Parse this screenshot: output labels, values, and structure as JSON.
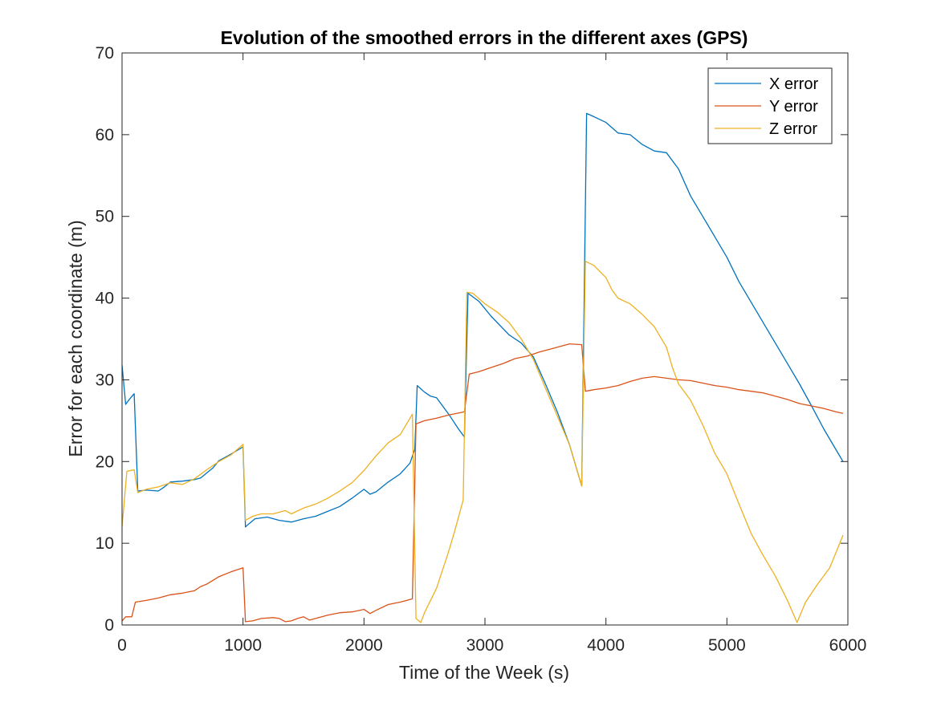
{
  "chart_data": {
    "type": "line",
    "title": "Evolution of the smoothed errors in the different axes (GPS)",
    "xlabel": "Time of the Week (s)",
    "ylabel": "Error for each coordinate (m)",
    "xlim": [
      0,
      6000
    ],
    "ylim": [
      0,
      70
    ],
    "xticks": [
      0,
      1000,
      2000,
      3000,
      4000,
      5000,
      6000
    ],
    "yticks": [
      0,
      10,
      20,
      30,
      40,
      50,
      60,
      70
    ],
    "grid": false,
    "legend_position": "top-right",
    "series": [
      {
        "name": "X error",
        "color": "#0072BD",
        "points": [
          [
            0,
            31.8
          ],
          [
            30,
            27.0
          ],
          [
            60,
            27.6
          ],
          [
            100,
            28.3
          ],
          [
            130,
            16.4
          ],
          [
            200,
            16.5
          ],
          [
            300,
            16.4
          ],
          [
            350,
            16.9
          ],
          [
            400,
            17.5
          ],
          [
            500,
            17.6
          ],
          [
            600,
            17.8
          ],
          [
            650,
            18.0
          ],
          [
            700,
            18.6
          ],
          [
            750,
            19.2
          ],
          [
            800,
            20.1
          ],
          [
            900,
            20.9
          ],
          [
            1000,
            21.8
          ],
          [
            1020,
            12.0
          ],
          [
            1050,
            12.4
          ],
          [
            1100,
            13.0
          ],
          [
            1200,
            13.2
          ],
          [
            1300,
            12.8
          ],
          [
            1400,
            12.6
          ],
          [
            1500,
            13.0
          ],
          [
            1600,
            13.3
          ],
          [
            1700,
            13.9
          ],
          [
            1800,
            14.5
          ],
          [
            1900,
            15.5
          ],
          [
            2000,
            16.6
          ],
          [
            2050,
            16.0
          ],
          [
            2100,
            16.3
          ],
          [
            2200,
            17.5
          ],
          [
            2300,
            18.5
          ],
          [
            2380,
            19.8
          ],
          [
            2420,
            21.5
          ],
          [
            2440,
            29.3
          ],
          [
            2500,
            28.5
          ],
          [
            2550,
            28.0
          ],
          [
            2600,
            27.8
          ],
          [
            2700,
            25.8
          ],
          [
            2780,
            24.0
          ],
          [
            2830,
            23.0
          ],
          [
            2860,
            40.6
          ],
          [
            2950,
            39.6
          ],
          [
            3050,
            37.8
          ],
          [
            3200,
            35.5
          ],
          [
            3300,
            34.5
          ],
          [
            3400,
            32.8
          ],
          [
            3500,
            29.5
          ],
          [
            3600,
            26.0
          ],
          [
            3700,
            22.0
          ],
          [
            3800,
            17.0
          ],
          [
            3840,
            62.6
          ],
          [
            3900,
            62.2
          ],
          [
            4000,
            61.5
          ],
          [
            4100,
            60.2
          ],
          [
            4200,
            60.0
          ],
          [
            4300,
            58.8
          ],
          [
            4400,
            58.0
          ],
          [
            4500,
            57.8
          ],
          [
            4600,
            55.8
          ],
          [
            4700,
            52.5
          ],
          [
            4800,
            50.0
          ],
          [
            4900,
            47.5
          ],
          [
            5000,
            45.0
          ],
          [
            5100,
            42.0
          ],
          [
            5200,
            39.5
          ],
          [
            5300,
            37.0
          ],
          [
            5400,
            34.5
          ],
          [
            5500,
            32.0
          ],
          [
            5600,
            29.5
          ],
          [
            5700,
            26.8
          ],
          [
            5800,
            24.0
          ],
          [
            5900,
            21.5
          ],
          [
            5960,
            20.0
          ]
        ]
      },
      {
        "name": "Y error",
        "color": "#D95319",
        "points": [
          [
            0,
            0.5
          ],
          [
            30,
            1.0
          ],
          [
            80,
            1.0
          ],
          [
            110,
            2.8
          ],
          [
            200,
            3.0
          ],
          [
            300,
            3.3
          ],
          [
            400,
            3.7
          ],
          [
            500,
            3.9
          ],
          [
            600,
            4.2
          ],
          [
            650,
            4.7
          ],
          [
            700,
            5.0
          ],
          [
            800,
            5.9
          ],
          [
            900,
            6.5
          ],
          [
            1000,
            7.0
          ],
          [
            1020,
            0.4
          ],
          [
            1080,
            0.5
          ],
          [
            1150,
            0.8
          ],
          [
            1250,
            0.9
          ],
          [
            1300,
            0.8
          ],
          [
            1350,
            0.4
          ],
          [
            1400,
            0.5
          ],
          [
            1450,
            0.8
          ],
          [
            1500,
            1.0
          ],
          [
            1550,
            0.6
          ],
          [
            1600,
            0.8
          ],
          [
            1700,
            1.2
          ],
          [
            1800,
            1.5
          ],
          [
            1900,
            1.6
          ],
          [
            2000,
            1.9
          ],
          [
            2050,
            1.4
          ],
          [
            2100,
            1.8
          ],
          [
            2200,
            2.5
          ],
          [
            2300,
            2.8
          ],
          [
            2400,
            3.2
          ],
          [
            2430,
            24.6
          ],
          [
            2500,
            25.0
          ],
          [
            2600,
            25.3
          ],
          [
            2700,
            25.7
          ],
          [
            2800,
            26.0
          ],
          [
            2830,
            26.1
          ],
          [
            2870,
            30.7
          ],
          [
            2950,
            31.0
          ],
          [
            3050,
            31.5
          ],
          [
            3150,
            32.0
          ],
          [
            3250,
            32.6
          ],
          [
            3350,
            32.9
          ],
          [
            3450,
            33.4
          ],
          [
            3550,
            33.8
          ],
          [
            3650,
            34.2
          ],
          [
            3700,
            34.4
          ],
          [
            3800,
            34.3
          ],
          [
            3830,
            28.6
          ],
          [
            3900,
            28.8
          ],
          [
            4000,
            29.0
          ],
          [
            4100,
            29.3
          ],
          [
            4200,
            29.8
          ],
          [
            4300,
            30.2
          ],
          [
            4400,
            30.4
          ],
          [
            4500,
            30.2
          ],
          [
            4600,
            30.0
          ],
          [
            4700,
            29.9
          ],
          [
            4800,
            29.6
          ],
          [
            4900,
            29.3
          ],
          [
            5000,
            29.1
          ],
          [
            5100,
            28.8
          ],
          [
            5200,
            28.6
          ],
          [
            5300,
            28.4
          ],
          [
            5400,
            28.0
          ],
          [
            5500,
            27.6
          ],
          [
            5600,
            27.1
          ],
          [
            5700,
            26.8
          ],
          [
            5800,
            26.5
          ],
          [
            5900,
            26.1
          ],
          [
            5960,
            25.9
          ]
        ]
      },
      {
        "name": "Z error",
        "color": "#EDB120",
        "points": [
          [
            0,
            12.0
          ],
          [
            40,
            18.8
          ],
          [
            100,
            19.0
          ],
          [
            130,
            16.2
          ],
          [
            200,
            16.6
          ],
          [
            300,
            16.9
          ],
          [
            400,
            17.4
          ],
          [
            500,
            17.2
          ],
          [
            600,
            17.9
          ],
          [
            700,
            19.0
          ],
          [
            800,
            20.0
          ],
          [
            900,
            20.8
          ],
          [
            1000,
            22.1
          ],
          [
            1020,
            12.8
          ],
          [
            1080,
            13.3
          ],
          [
            1150,
            13.6
          ],
          [
            1250,
            13.6
          ],
          [
            1350,
            14.0
          ],
          [
            1400,
            13.6
          ],
          [
            1500,
            14.3
          ],
          [
            1600,
            14.8
          ],
          [
            1700,
            15.5
          ],
          [
            1800,
            16.4
          ],
          [
            1900,
            17.4
          ],
          [
            2000,
            18.9
          ],
          [
            2100,
            20.7
          ],
          [
            2200,
            22.3
          ],
          [
            2300,
            23.3
          ],
          [
            2400,
            25.8
          ],
          [
            2430,
            0.8
          ],
          [
            2470,
            0.3
          ],
          [
            2500,
            1.5
          ],
          [
            2600,
            4.5
          ],
          [
            2700,
            9.0
          ],
          [
            2750,
            11.5
          ],
          [
            2820,
            15.3
          ],
          [
            2850,
            40.7
          ],
          [
            2900,
            40.6
          ],
          [
            3000,
            39.3
          ],
          [
            3100,
            38.3
          ],
          [
            3200,
            37.0
          ],
          [
            3300,
            35.0
          ],
          [
            3400,
            32.5
          ],
          [
            3500,
            29.0
          ],
          [
            3600,
            25.5
          ],
          [
            3700,
            22.0
          ],
          [
            3800,
            17.0
          ],
          [
            3830,
            44.5
          ],
          [
            3900,
            44.0
          ],
          [
            4000,
            42.5
          ],
          [
            4050,
            41.0
          ],
          [
            4100,
            40.0
          ],
          [
            4200,
            39.3
          ],
          [
            4300,
            38.0
          ],
          [
            4400,
            36.5
          ],
          [
            4500,
            34.0
          ],
          [
            4550,
            31.5
          ],
          [
            4600,
            29.5
          ],
          [
            4700,
            27.5
          ],
          [
            4800,
            24.5
          ],
          [
            4900,
            21.0
          ],
          [
            5000,
            18.5
          ],
          [
            5100,
            14.8
          ],
          [
            5200,
            11.2
          ],
          [
            5300,
            8.5
          ],
          [
            5400,
            6.0
          ],
          [
            5500,
            3.0
          ],
          [
            5580,
            0.3
          ],
          [
            5650,
            2.8
          ],
          [
            5750,
            5.0
          ],
          [
            5850,
            7.0
          ],
          [
            5900,
            8.8
          ],
          [
            5960,
            11.0
          ]
        ]
      }
    ]
  }
}
